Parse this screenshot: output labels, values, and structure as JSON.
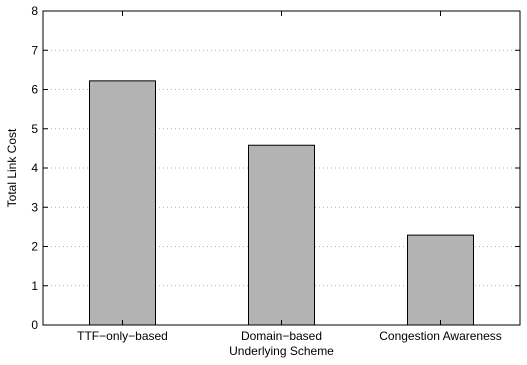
{
  "chart_data": {
    "type": "bar",
    "categories": [
      "TTF−only−based",
      "Domain−based",
      "Congestion Awareness"
    ],
    "values": [
      6.22,
      4.58,
      2.29
    ],
    "xlabel": "Underlying Scheme",
    "ylabel": "Total Link Cost",
    "ylim": [
      0,
      8
    ],
    "yticks": [
      0,
      1,
      2,
      3,
      4,
      5,
      6,
      7,
      8
    ],
    "grid": true,
    "bar_color": "#b3b3b3",
    "legend": "none"
  }
}
